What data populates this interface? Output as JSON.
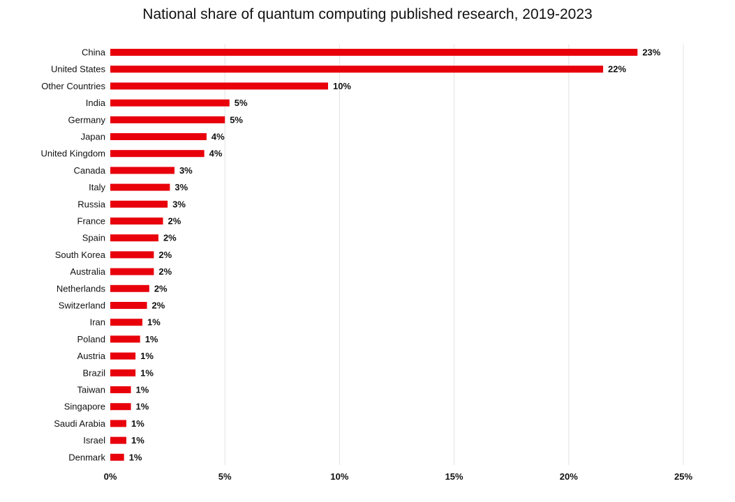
{
  "chart_data": {
    "type": "bar",
    "orientation": "horizontal",
    "title": "National share of quantum computing published research, 2019-2023",
    "xlabel": "",
    "ylabel": "",
    "xlim": [
      0,
      25
    ],
    "xticks": [
      0,
      5,
      10,
      15,
      20,
      25
    ],
    "xtick_labels": [
      "0%",
      "5%",
      "10%",
      "15%",
      "20%",
      "25%"
    ],
    "grid": "vertical",
    "bar_color": "#e8000b",
    "categories": [
      "China",
      "United States",
      "Other Countries",
      "India",
      "Germany",
      "Japan",
      "United Kingdom",
      "Canada",
      "Italy",
      "Russia",
      "France",
      "Spain",
      "South Korea",
      "Australia",
      "Netherlands",
      "Switzerland",
      "Iran",
      "Poland",
      "Austria",
      "Brazil",
      "Taiwan",
      "Singapore",
      "Saudi Arabia",
      "Israel",
      "Denmark"
    ],
    "values": [
      23.0,
      21.5,
      9.5,
      5.2,
      5.0,
      4.2,
      4.1,
      2.8,
      2.6,
      2.5,
      2.3,
      2.1,
      1.9,
      1.9,
      1.7,
      1.6,
      1.4,
      1.3,
      1.1,
      1.1,
      0.9,
      0.9,
      0.7,
      0.7,
      0.6
    ],
    "value_labels": [
      "23%",
      "22%",
      "10%",
      "5%",
      "5%",
      "4%",
      "4%",
      "3%",
      "3%",
      "3%",
      "2%",
      "2%",
      "2%",
      "2%",
      "2%",
      "2%",
      "1%",
      "1%",
      "1%",
      "1%",
      "1%",
      "1%",
      "1%",
      "1%",
      "1%"
    ]
  }
}
